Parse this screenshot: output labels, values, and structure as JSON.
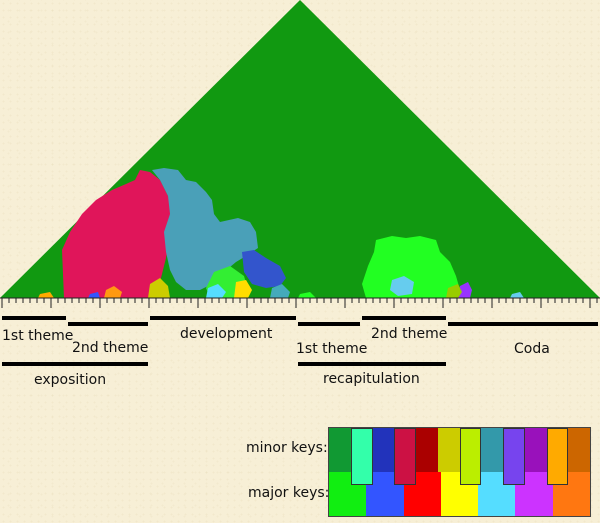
{
  "sections": {
    "theme1_a": "1st theme",
    "theme2_a": "2nd theme",
    "development": "development",
    "theme1_b": "1st theme",
    "theme2_b": "2nd theme",
    "coda": "Coda",
    "exposition": "exposition",
    "recapitulation": "recapitulation"
  },
  "legend": {
    "minor_label": "minor keys:",
    "major_label": "major keys:",
    "major_colors": [
      "#11ee11",
      "#3355ff",
      "#ff0000",
      "#ffff00",
      "#55ddff",
      "#cc33ff",
      "#ff7711"
    ],
    "minor_colors": [
      "#119933",
      "#33ff99",
      "#2233bb",
      "#cc1144",
      "#aa0000",
      "#cccc00",
      "#99cc00",
      "#3399aa",
      "#6633cc",
      "#9911bb",
      "#bb5522",
      "#cc6600"
    ],
    "minor_inner_colors": [
      "#33ffaa",
      "#cc1144",
      "#bbee00",
      "#7744ee",
      "#ffaa00"
    ]
  },
  "colors": {
    "background": "#f7efd6",
    "main_key": "#119911",
    "magenta_region": "#e0155a",
    "teal_region": "#4aa0b8",
    "bright_green_region": "#22ff22"
  }
}
